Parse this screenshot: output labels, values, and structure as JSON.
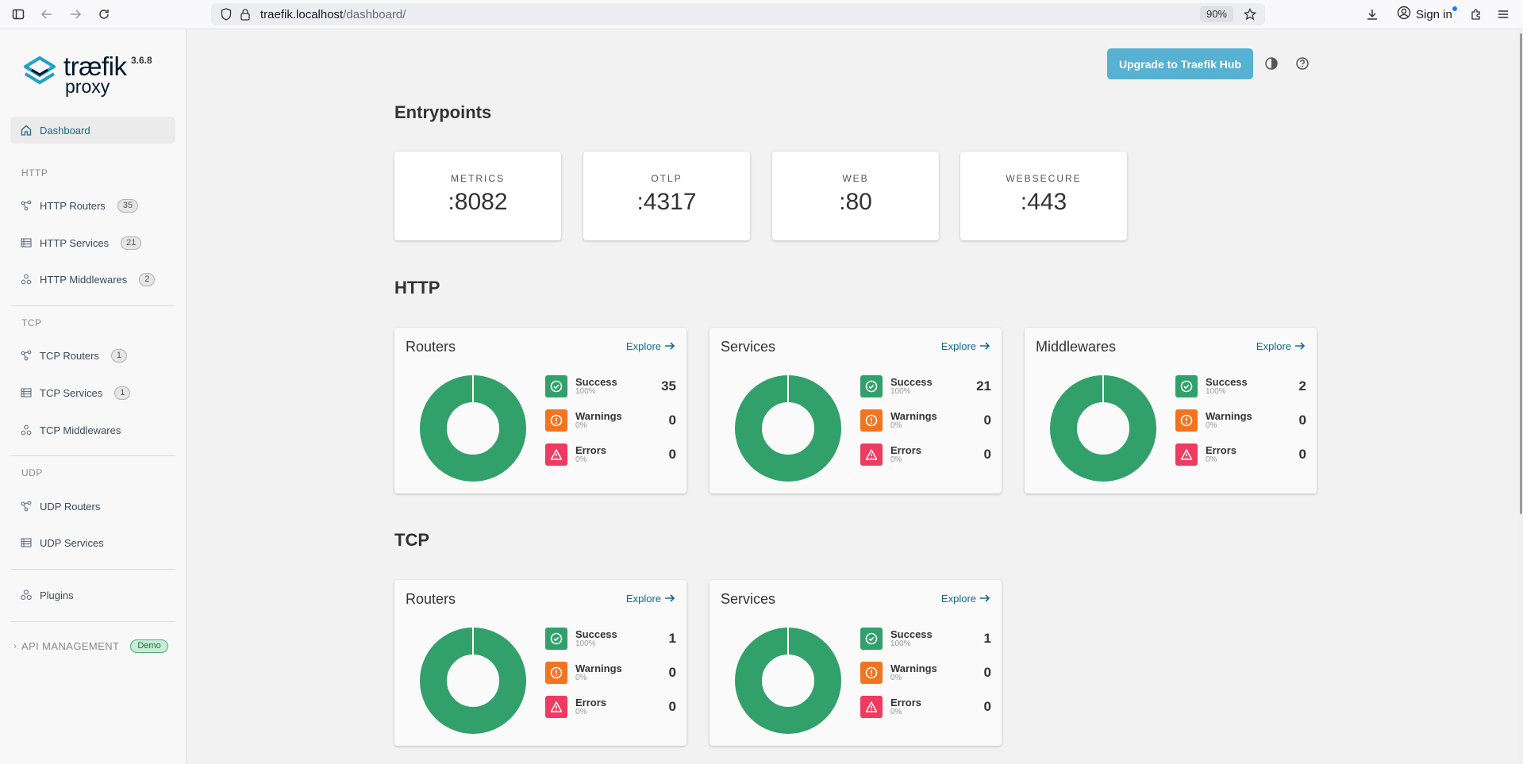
{
  "browser": {
    "url_host": "traefik.localhost",
    "url_path": "/dashboard/",
    "zoom": "90%",
    "sign_in": "Sign in"
  },
  "brand": {
    "name": "træfik",
    "sub": "proxy",
    "version": "3.6.8"
  },
  "sidebar": {
    "dashboard": "Dashboard",
    "http_section": "HTTP",
    "http_routers": {
      "label": "HTTP Routers",
      "count": "35"
    },
    "http_services": {
      "label": "HTTP Services",
      "count": "21"
    },
    "http_middlewares": {
      "label": "HTTP Middlewares",
      "count": "2"
    },
    "tcp_section": "TCP",
    "tcp_routers": {
      "label": "TCP Routers",
      "count": "1"
    },
    "tcp_services": {
      "label": "TCP Services",
      "count": "1"
    },
    "tcp_middlewares": {
      "label": "TCP Middlewares"
    },
    "udp_section": "UDP",
    "udp_routers": {
      "label": "UDP Routers"
    },
    "udp_services": {
      "label": "UDP Services"
    },
    "plugins": "Plugins",
    "api_management": "API MANAGEMENT",
    "demo_badge": "Demo"
  },
  "header": {
    "upgrade_label": "Upgrade to Traefik Hub"
  },
  "entrypoints": {
    "title": "Entrypoints",
    "items": [
      {
        "name": "METRICS",
        "port": ":8082"
      },
      {
        "name": "OTLP",
        "port": ":4317"
      },
      {
        "name": "WEB",
        "port": ":80"
      },
      {
        "name": "WEBSECURE",
        "port": ":443"
      }
    ]
  },
  "status_labels": {
    "success": "Success",
    "warnings": "Warnings",
    "errors": "Errors",
    "explore": "Explore"
  },
  "http": {
    "title": "HTTP",
    "cards": [
      {
        "title": "Routers",
        "success": "35",
        "success_pct": "100%",
        "warnings": "0",
        "warnings_pct": "0%",
        "errors": "0",
        "errors_pct": "0%"
      },
      {
        "title": "Services",
        "success": "21",
        "success_pct": "100%",
        "warnings": "0",
        "warnings_pct": "0%",
        "errors": "0",
        "errors_pct": "0%"
      },
      {
        "title": "Middlewares",
        "success": "2",
        "success_pct": "100%",
        "warnings": "0",
        "warnings_pct": "0%",
        "errors": "0",
        "errors_pct": "0%"
      }
    ]
  },
  "tcp": {
    "title": "TCP",
    "cards": [
      {
        "title": "Routers",
        "success": "1",
        "success_pct": "100%",
        "warnings": "0",
        "warnings_pct": "0%",
        "errors": "0",
        "errors_pct": "0%"
      },
      {
        "title": "Services",
        "success": "1",
        "success_pct": "100%",
        "warnings": "0",
        "warnings_pct": "0%",
        "errors": "0",
        "errors_pct": "0%"
      }
    ]
  },
  "colors": {
    "success": "#32a06a",
    "warning": "#f2741f",
    "error": "#f03a5f",
    "accent": "#56b1d3",
    "link": "#146a8f"
  }
}
